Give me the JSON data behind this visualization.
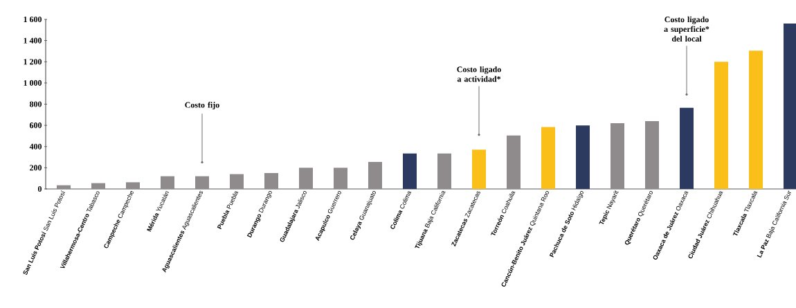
{
  "chart_data": {
    "type": "bar",
    "categories": [
      "**San Luis Potosí** San Luis Potosí",
      "**Villahermosa-Centro** Tabasco",
      "**Campeche** Campeche",
      "**Mérida** Yucatán",
      "**Aguascalientes** Aguascalientes",
      "**Puebla** Puebla",
      "**Durango** Durango",
      "**Guadalajara** Jalisco",
      "**Acapulco** Guerrero",
      "**Celaya** Guanajuato",
      "**Colima** Colima",
      "**Tijuana** Baja California",
      "**Zacatecas** Zacatecas",
      "**Torreón** Coahuila",
      "**Cancún-Benito Juárez** Quintana Roo",
      "**Pachuca de Soto** Hidalgo",
      "**Tepic** Nayarit",
      "**Querétaro** Querétaro",
      "**Oaxaca de Juárez** Oaxaca",
      "**Ciudad Juárez** Chihuahua",
      "**Tlaxcala** Tlaxcala",
      "**La Paz** Baja California Sur"
    ],
    "values": [
      35,
      55,
      63,
      120,
      120,
      140,
      150,
      200,
      200,
      255,
      335,
      335,
      370,
      505,
      585,
      600,
      620,
      640,
      765,
      1200,
      1305,
      1560
    ],
    "colors": [
      "#8f8a8c",
      "#8f8a8c",
      "#8f8a8c",
      "#8f8a8c",
      "#8f8a8c",
      "#8f8a8c",
      "#8f8a8c",
      "#8f8a8c",
      "#8f8a8c",
      "#8f8a8c",
      "#2b3a5e",
      "#8f8a8c",
      "#fbbf1a",
      "#8f8a8c",
      "#fbbf1a",
      "#2b3a5e",
      "#8f8a8c",
      "#8f8a8c",
      "#2b3a5e",
      "#fbbf1a",
      "#fbbf1a",
      "#2b3a5e"
    ],
    "ylim": [
      0,
      1600
    ],
    "yticks": [
      0,
      200,
      400,
      600,
      800,
      {
        "value": 1000,
        "label": "1 000"
      },
      {
        "value": 1200,
        "label": "1 200"
      },
      {
        "value": 1400,
        "label": "1 400"
      },
      {
        "value": 1600,
        "label": "1 600"
      }
    ],
    "grid": false,
    "annotations": [
      "Costo fijo",
      "Costo ligado a actividad*",
      "Costo ligado a superficie* del local"
    ]
  }
}
